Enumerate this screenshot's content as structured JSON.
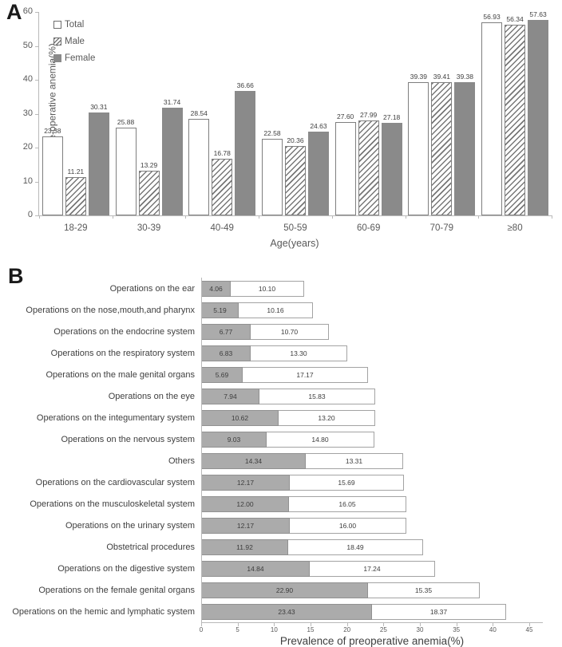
{
  "figure": {
    "panel_a_label": "A",
    "panel_b_label": "B"
  },
  "colors": {
    "bar_gray_a": "#8a8a8a",
    "bar_border_a": "#7f7f7f",
    "hatch_stripe": "#777777",
    "bar_gray_b": "#ababab",
    "bar_gray_b_border": "#919191",
    "bar_white_b_border": "#a3a3a3",
    "axis_line": "#b9b9b9"
  },
  "chart_data": [
    {
      "type": "bar",
      "panel": "A",
      "orientation": "vertical",
      "grouped": true,
      "categories": [
        "18-29",
        "30-39",
        "40-49",
        "50-59",
        "60-69",
        "70-79",
        "≥80"
      ],
      "series": [
        {
          "name": "Total",
          "style": "white",
          "values": [
            23.38,
            25.88,
            28.54,
            22.58,
            27.6,
            39.39,
            56.93
          ]
        },
        {
          "name": "Male",
          "style": "hatched",
          "values": [
            11.21,
            13.29,
            16.78,
            20.36,
            27.99,
            39.41,
            56.34
          ]
        },
        {
          "name": "Female",
          "style": "gray",
          "values": [
            30.31,
            31.74,
            36.66,
            24.63,
            27.18,
            39.38,
            57.63
          ]
        }
      ],
      "ylabel": "Prevalence of pre-operative anemia(%)",
      "xlabel": "Age(years)",
      "ylim": [
        0,
        60
      ],
      "yticks": [
        0,
        10,
        20,
        30,
        40,
        50,
        60
      ],
      "grid": false,
      "legend_position": "top-left",
      "value_labels_decimals": 2
    },
    {
      "type": "bar",
      "panel": "B",
      "orientation": "horizontal",
      "stacked": true,
      "categories": [
        "Operations on the ear",
        "Operations on the nose,mouth,and pharynx",
        "Operations on the endocrine system",
        "Operations on the respiratory system",
        "Operations on the male genital organs",
        "Operations on the eye",
        "Operations on the integumentary system",
        "Operations on the nervous system",
        "Others",
        "Operations on the cardiovascular system",
        "Operations on the musculoskeletal system",
        "Operations on the urinary system",
        "Obstetrical procedures",
        "Operations on the digestive system",
        "Operations on the female genital organs",
        "Operations on the hemic and lymphatic system"
      ],
      "series": [
        {
          "name": "gray-segment",
          "style": "gray",
          "values": [
            4.06,
            5.19,
            6.77,
            6.83,
            5.69,
            7.94,
            10.62,
            9.03,
            14.34,
            12.17,
            12.0,
            12.17,
            11.92,
            14.84,
            22.9,
            23.43
          ]
        },
        {
          "name": "white-segment",
          "style": "white",
          "values": [
            10.1,
            10.16,
            10.7,
            13.3,
            17.17,
            15.83,
            13.2,
            14.8,
            13.31,
            15.69,
            16.05,
            16.0,
            18.49,
            17.24,
            15.35,
            18.37
          ]
        }
      ],
      "xlabel": "Prevalence of preoperative anemia(%)",
      "xlim": [
        0,
        45
      ],
      "xticks": [
        0,
        5,
        10,
        15,
        20,
        25,
        30,
        35,
        40,
        45
      ],
      "grid": false,
      "value_labels_decimals": 2
    }
  ]
}
